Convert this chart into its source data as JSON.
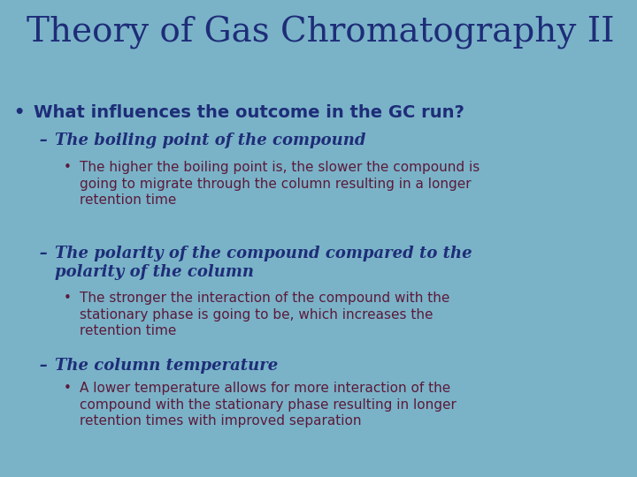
{
  "background_color": "#7ab3c8",
  "title": "Theory of Gas Chromatography II",
  "title_color": "#1e2d78",
  "title_fontsize": 28,
  "bullet_color": "#1e2d78",
  "sub_color": "#1e2d78",
  "body_color": "#5c1a3a",
  "bullet1": "What influences the outcome in the GC run?",
  "bullet1_fontsize": 14,
  "sub_fontsize": 13,
  "body_fontsize": 11,
  "sub1": "The boiling point of the compound",
  "sub1_body": "The higher the boiling point is, the slower the compound is\ngoing to migrate through the column resulting in a longer\nretention time",
  "sub2": "The polarity of the compound compared to the\npolarity of the column",
  "sub2_body": "The stronger the interaction of the compound with the\nstationary phase is going to be, which increases the\nretention time",
  "sub3": "The column temperature",
  "sub3_body": "A lower temperature allows for more interaction of the\ncompound with the stationary phase resulting in longer\nretention times with improved separation"
}
